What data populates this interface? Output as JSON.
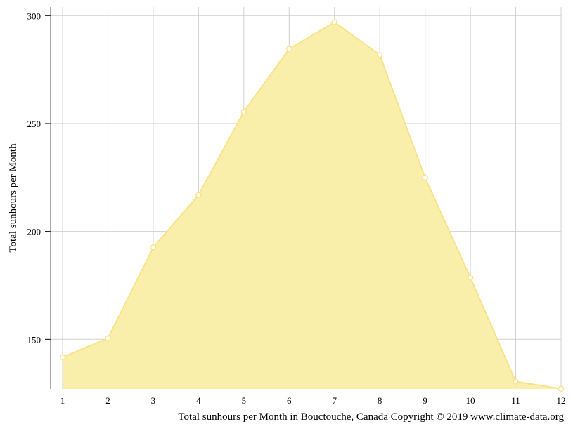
{
  "chart_data": {
    "type": "area",
    "x": [
      1,
      2,
      3,
      4,
      5,
      6,
      7,
      8,
      9,
      10,
      11,
      12
    ],
    "series": [
      {
        "values": [
          141.7,
          150.5,
          192.6,
          216.9,
          255.5,
          284.6,
          297.0,
          281.8,
          224.9,
          178.6,
          130.4,
          127.1
        ]
      }
    ],
    "ylabel": "Total sunhours per Month",
    "xlabel": "",
    "caption": "Total sunhours per Month in Bouctouche, Canada Copyright © 2019 www.climate-data.org",
    "xlim": [
      1,
      12
    ],
    "ylim": [
      127,
      304
    ],
    "yticks": [
      150,
      200,
      250,
      300
    ],
    "grid": true,
    "fill_color": "#faeeab",
    "line_color": "#f8e38a",
    "marker_fill": "#ffffff",
    "grid_color": "#d0d0d0"
  }
}
